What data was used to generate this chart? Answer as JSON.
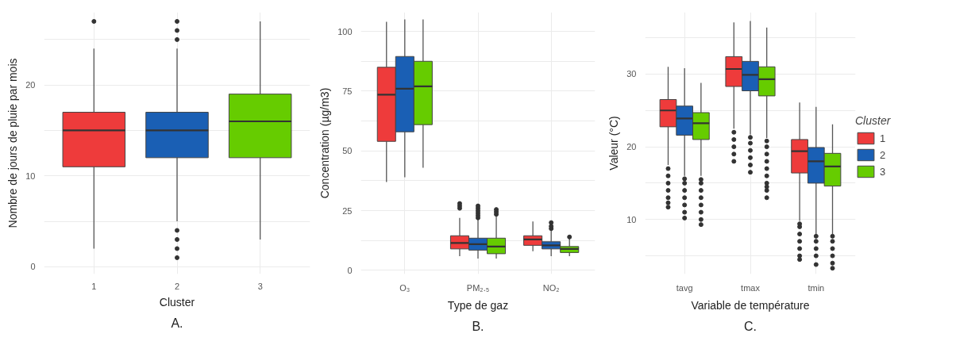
{
  "chart_data": [
    {
      "type": "box",
      "categories": [
        "1",
        "2",
        "3"
      ],
      "xlabel": "Cluster",
      "ylabel": "Nombre de jours de pluie par mois",
      "annotations": [
        "A."
      ],
      "ylim": [
        -0.8,
        28
      ],
      "yticks": [
        0,
        {
          "value": 5,
          "label": null
        },
        10,
        {
          "value": 15,
          "label": null
        },
        20,
        {
          "value": 25,
          "label": null
        }
      ],
      "grid": true,
      "legend": false,
      "colors": [
        "#ee3b3b",
        "#1a5fb4",
        "#66cc00"
      ],
      "boxes": [
        {
          "low": 2,
          "q1": 11,
          "median": 15,
          "q3": 17,
          "high": 24,
          "outliers": [
            27
          ]
        },
        {
          "low": 5,
          "q1": 12,
          "median": 15,
          "q3": 17,
          "high": 24,
          "outliers": [
            27,
            26,
            25,
            4,
            3,
            2,
            1
          ]
        },
        {
          "low": 3,
          "q1": 12,
          "median": 16,
          "q3": 19,
          "high": 27
        }
      ]
    },
    {
      "type": "box",
      "categories": [
        "O₃",
        "PM₂.₅",
        "NO₂"
      ],
      "xlabel": "Type de gaz",
      "ylabel": "Concentration (µg/m3)",
      "annotations": [
        "B."
      ],
      "ylim": [
        -1.5,
        108
      ],
      "yticks": [
        0,
        {
          "value": 12.5,
          "label": null
        },
        25,
        {
          "value": 37.5,
          "label": null
        },
        50,
        {
          "value": 62.5,
          "label": null
        },
        75,
        {
          "value": 87.5,
          "label": null
        },
        100
      ],
      "grid": true,
      "legend": false,
      "series": [
        {
          "color": "#ee3b3b",
          "boxes": [
            {
              "low": 37,
              "q1": 54,
              "median": 73.5,
              "q3": 85,
              "high": 104
            },
            {
              "low": 6,
              "q1": 9,
              "median": 11.5,
              "q3": 14.5,
              "high": 22,
              "outliers": [
                26,
                27,
                28
              ]
            },
            {
              "low": 8,
              "q1": 10.5,
              "median": 13,
              "q3": 14.5,
              "high": 20.5
            }
          ]
        },
        {
          "color": "#1a5fb4",
          "boxes": [
            {
              "low": 39,
              "q1": 58,
              "median": 76,
              "q3": 89.5,
              "high": 105
            },
            {
              "low": 5,
              "q1": 8.5,
              "median": 11,
              "q3": 13.5,
              "high": 21.5,
              "outliers": [
                22,
                23,
                24,
                25,
                26,
                27
              ]
            },
            {
              "low": 6,
              "q1": 9,
              "median": 10.5,
              "q3": 12,
              "high": 17,
              "outliers": [
                17.5,
                18.5,
                20
              ]
            }
          ]
        },
        {
          "color": "#66cc00",
          "boxes": [
            {
              "low": 43,
              "q1": 61,
              "median": 77,
              "q3": 87.5,
              "high": 105
            },
            {
              "low": 5,
              "q1": 7,
              "median": 10,
              "q3": 13.5,
              "high": 23,
              "outliers": [
                23.5,
                24.5,
                25.5
              ]
            },
            {
              "low": 6,
              "q1": 7.5,
              "median": 9,
              "q3": 10,
              "high": 13.5,
              "outliers": [
                14
              ]
            }
          ]
        }
      ]
    },
    {
      "type": "box",
      "categories": [
        "tavg",
        "tmax",
        "tmin"
      ],
      "xlabel": "Variable de température",
      "ylabel": "Valeur (°C)",
      "annotations": [
        "C."
      ],
      "legend_title": "Cluster",
      "legend": "right",
      "ylim": [
        2.5,
        38.5
      ],
      "yticks": [
        {
          "value": 5,
          "label": null
        },
        10,
        {
          "value": 15,
          "label": null
        },
        20,
        {
          "value": 25,
          "label": null
        },
        30,
        {
          "value": 35,
          "label": null
        }
      ],
      "grid": true,
      "series": [
        {
          "name": "1",
          "color": "#ee3b3b",
          "boxes": [
            {
              "low": 17.5,
              "q1": 22.75,
              "median": 25,
              "q3": 26.5,
              "high": 31,
              "outliers": [
                11.7,
                12.3,
                13,
                14,
                15,
                16,
                17
              ]
            },
            {
              "low": 22.5,
              "q1": 28.3,
              "median": 30.7,
              "q3": 32.4,
              "high": 37.1,
              "outliers": [
                18,
                19,
                20,
                21,
                22
              ]
            },
            {
              "low": 9.8,
              "q1": 16.4,
              "median": 19.4,
              "q3": 21,
              "high": 26.1,
              "outliers": [
                4.5,
                5,
                6,
                7,
                8,
                9,
                9.4
              ]
            }
          ]
        },
        {
          "name": "2",
          "color": "#1a5fb4",
          "boxes": [
            {
              "low": 16,
              "q1": 21.6,
              "median": 23.9,
              "q3": 25.6,
              "high": 30.8,
              "outliers": [
                10.2,
                11,
                12,
                13,
                14,
                15,
                15.6
              ]
            },
            {
              "low": 21.7,
              "q1": 27.7,
              "median": 29.9,
              "q3": 31.75,
              "high": 37.3,
              "outliers": [
                16.5,
                17.5,
                18.5,
                19.5,
                20.5,
                21.3
              ]
            },
            {
              "low": 8,
              "q1": 15,
              "median": 18,
              "q3": 19.9,
              "high": 25.5,
              "outliers": [
                3.8,
                5,
                6,
                7,
                7.7
              ]
            }
          ]
        },
        {
          "name": "3",
          "color": "#66cc00",
          "boxes": [
            {
              "low": 16,
              "q1": 21,
              "median": 23.25,
              "q3": 24.7,
              "high": 28.8,
              "outliers": [
                9.3,
                10,
                11,
                12,
                13,
                14,
                15,
                15.5
              ]
            },
            {
              "low": 21.2,
              "q1": 27,
              "median": 29.3,
              "q3": 31,
              "high": 36.4,
              "outliers": [
                13,
                14,
                14.5,
                15,
                16,
                17,
                18,
                19,
                20,
                20.8
              ]
            },
            {
              "low": 8,
              "q1": 14.6,
              "median": 17.3,
              "q3": 19.1,
              "high": 23.1,
              "outliers": [
                3.3,
                4,
                5,
                6,
                7,
                7.7
              ]
            }
          ]
        }
      ]
    }
  ]
}
